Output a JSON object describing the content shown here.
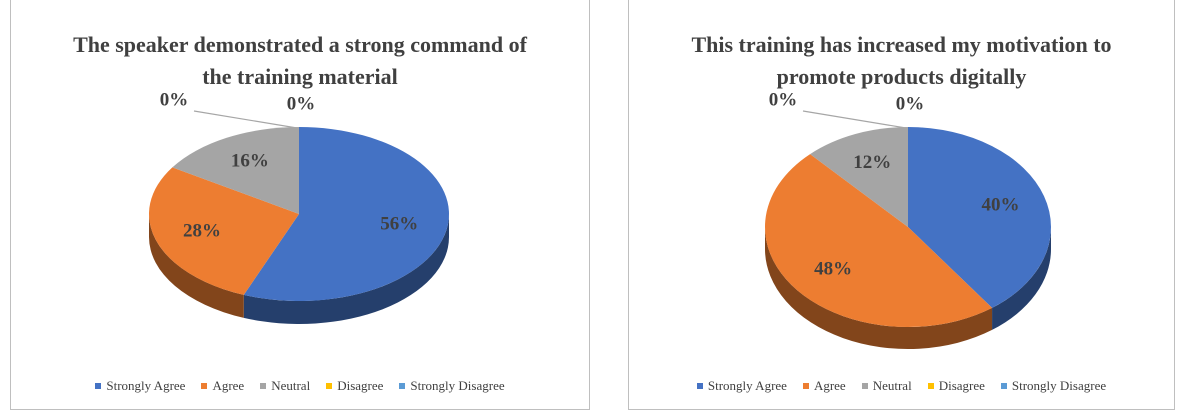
{
  "chart_data": [
    {
      "type": "pie3d",
      "title": "The speaker demonstrated a strong command of the training material",
      "categories": [
        "Strongly Agree",
        "Agree",
        "Neutral",
        "Disagree",
        "Strongly Disagree"
      ],
      "values": [
        56,
        28,
        16,
        0,
        0
      ],
      "value_labels": [
        "56%",
        "28%",
        "16%",
        "0%",
        "0%"
      ],
      "colors": [
        "#4472c4",
        "#ed7d31",
        "#a5a5a5",
        "#ffc000",
        "#5b9bd5"
      ],
      "legend": "bottom"
    },
    {
      "type": "pie3d",
      "title": "This training has increased my motivation to promote products digitally",
      "categories": [
        "Strongly Agree",
        "Agree",
        "Neutral",
        "Disagree",
        "Strongly Disagree"
      ],
      "values": [
        40,
        48,
        12,
        0,
        0
      ],
      "value_labels": [
        "40%",
        "48%",
        "12%",
        "0%",
        "0%"
      ],
      "colors": [
        "#4472c4",
        "#ed7d31",
        "#a5a5a5",
        "#ffc000",
        "#5b9bd5"
      ],
      "legend": "bottom"
    }
  ]
}
